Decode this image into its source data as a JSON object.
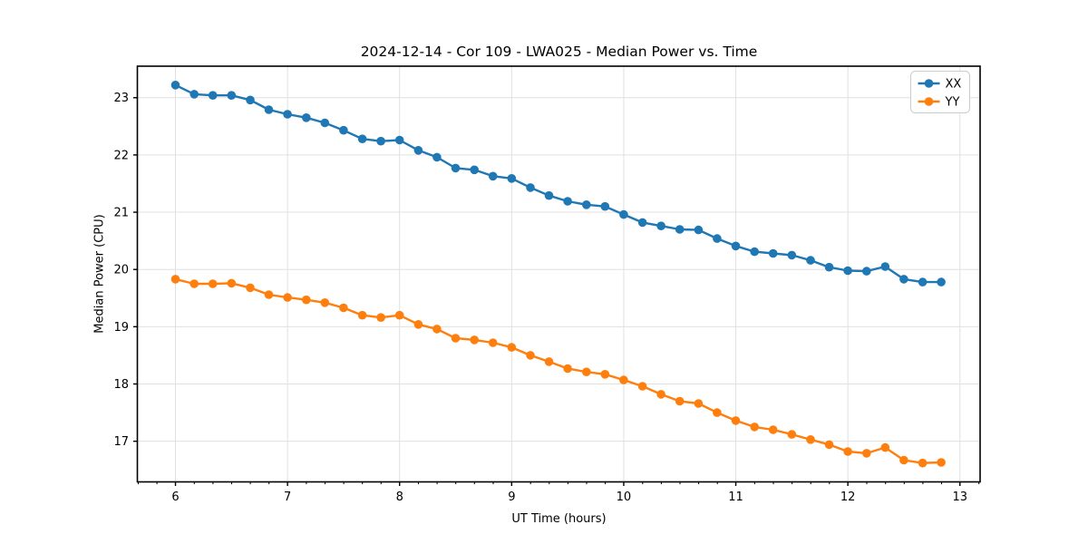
{
  "figure": {
    "background": "#ffffff"
  },
  "chart_data": {
    "type": "line",
    "title": "2024-12-14 - Cor 109 - LWA025 - Median Power vs. Time",
    "xlabel": "UT Time (hours)",
    "ylabel": "Median Power (CPU)",
    "xlim": [
      5.66,
      13.18
    ],
    "ylim": [
      16.29,
      23.55
    ],
    "xticks": [
      6,
      7,
      8,
      9,
      10,
      11,
      12,
      13
    ],
    "yticks": [
      17,
      18,
      19,
      20,
      21,
      22,
      23
    ],
    "minor_xtick_step": 0.1667,
    "grid": true,
    "legend_position": "upper right",
    "x": [
      6.0,
      6.167,
      6.333,
      6.5,
      6.667,
      6.833,
      7.0,
      7.167,
      7.333,
      7.5,
      7.667,
      7.833,
      8.0,
      8.167,
      8.333,
      8.5,
      8.667,
      8.833,
      9.0,
      9.167,
      9.333,
      9.5,
      9.667,
      9.833,
      10.0,
      10.167,
      10.333,
      10.5,
      10.667,
      10.833,
      11.0,
      11.167,
      11.333,
      11.5,
      11.667,
      11.833,
      12.0,
      12.167,
      12.333,
      12.5,
      12.667,
      12.833
    ],
    "series": [
      {
        "name": "XX",
        "color": "#1f77b4",
        "values": [
          23.22,
          23.06,
          23.04,
          23.04,
          22.96,
          22.79,
          22.71,
          22.65,
          22.56,
          22.43,
          22.28,
          22.24,
          22.26,
          22.08,
          21.96,
          21.77,
          21.74,
          21.63,
          21.59,
          21.43,
          21.29,
          21.19,
          21.13,
          21.1,
          20.96,
          20.82,
          20.76,
          20.7,
          20.69,
          20.54,
          20.41,
          20.31,
          20.28,
          20.25,
          20.16,
          20.04,
          19.98,
          19.97,
          20.05,
          19.83,
          19.78,
          19.78
        ]
      },
      {
        "name": "YY",
        "color": "#ff7f0e",
        "values": [
          19.83,
          19.75,
          19.75,
          19.76,
          19.68,
          19.56,
          19.51,
          19.47,
          19.42,
          19.33,
          19.2,
          19.16,
          19.2,
          19.04,
          18.96,
          18.8,
          18.77,
          18.72,
          18.64,
          18.5,
          18.39,
          18.27,
          18.21,
          18.17,
          18.07,
          17.96,
          17.82,
          17.7,
          17.66,
          17.5,
          17.36,
          17.25,
          17.2,
          17.12,
          17.03,
          16.94,
          16.82,
          16.79,
          16.89,
          16.67,
          16.62,
          16.63
        ]
      }
    ]
  },
  "style": {
    "grid_color": "#e0e0e0",
    "axis_color": "#000000",
    "text_color": "#000000",
    "legend_border_color": "#cccccc",
    "legend_background": "#ffffff"
  }
}
